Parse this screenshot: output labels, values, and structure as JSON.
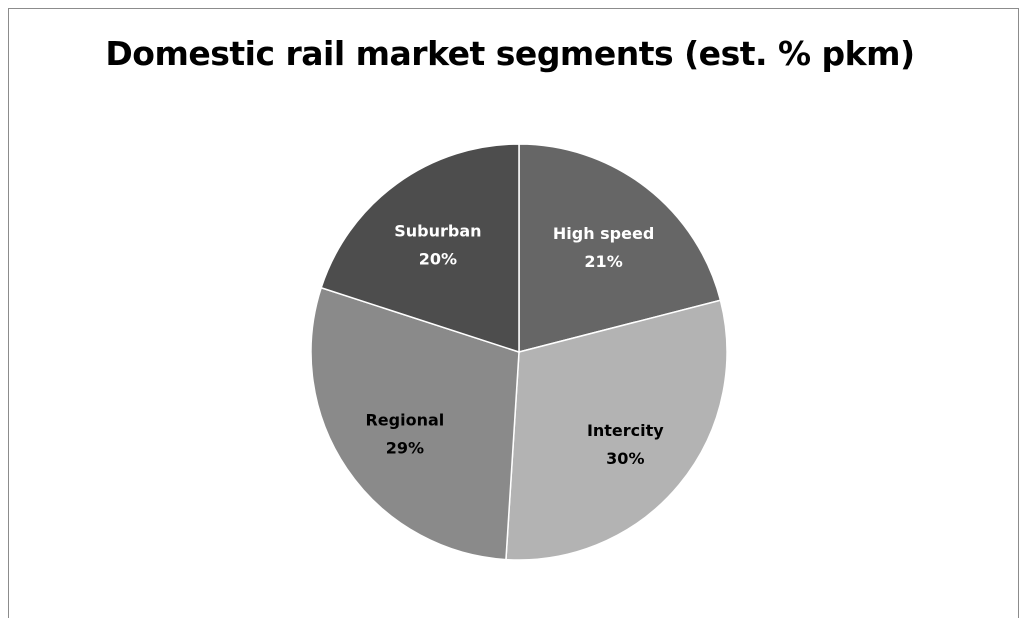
{
  "chart_data": {
    "type": "pie",
    "title": "Domestic rail market segments (est. % pkm)",
    "start_angle_deg": 0,
    "direction": "clockwise",
    "slices": [
      {
        "label": "High speed",
        "value": 21,
        "display": "21%",
        "color": "#666666",
        "text_color": "#ffffff"
      },
      {
        "label": "Intercity",
        "value": 30,
        "display": "30%",
        "color": "#b3b3b3",
        "text_color": "#000000"
      },
      {
        "label": "Regional",
        "value": 29,
        "display": "29%",
        "color": "#8a8a8a",
        "text_color": "#000000"
      },
      {
        "label": "Suburban",
        "value": 20,
        "display": "20%",
        "color": "#4d4d4d",
        "text_color": "#ffffff"
      }
    ]
  }
}
